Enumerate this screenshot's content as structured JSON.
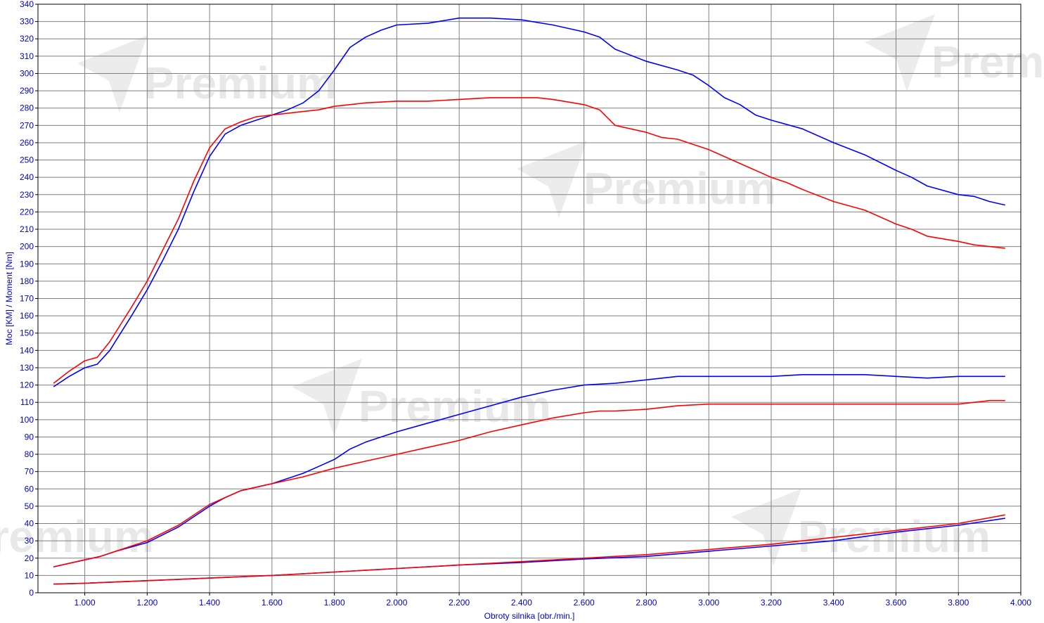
{
  "watermark": {
    "text": "Premium",
    "icon": "triangle-logo-icon"
  },
  "chart_data": {
    "type": "line",
    "xlabel": "Obroty silnika [obr./min.]",
    "ylabel": "Moc [KM] / Moment [Nm]",
    "xlim": [
      850,
      4000
    ],
    "ylim": [
      0,
      340
    ],
    "xticks": [
      1000,
      1200,
      1400,
      1600,
      1800,
      2000,
      2200,
      2400,
      2600,
      2800,
      3000,
      3200,
      3400,
      3600,
      3800,
      4000
    ],
    "xtick_labels": [
      "1.000",
      "1.200",
      "1.400",
      "1.600",
      "1.800",
      "2.000",
      "2.200",
      "2.400",
      "2.600",
      "2.800",
      "3.000",
      "3.200",
      "3.400",
      "3.600",
      "3.800",
      "4.000"
    ],
    "yticks": [
      0,
      10,
      20,
      30,
      40,
      50,
      60,
      70,
      80,
      90,
      100,
      110,
      120,
      130,
      140,
      150,
      160,
      170,
      180,
      190,
      200,
      210,
      220,
      230,
      240,
      250,
      260,
      270,
      280,
      290,
      300,
      310,
      320,
      330,
      340
    ],
    "ytick_labels": [
      "0",
      "10",
      "20",
      "30",
      "40",
      "50",
      "60",
      "70",
      "80",
      "90",
      "100",
      "110",
      "120",
      "130",
      "140",
      "150",
      "160",
      "170",
      "180",
      "190",
      "200",
      "210",
      "220",
      "230",
      "240",
      "250",
      "260",
      "270",
      "280",
      "290",
      "300",
      "310",
      "320",
      "330",
      "340"
    ],
    "grid": true,
    "legend": "none",
    "series": [
      {
        "color": "#0000ff",
        "points": [
          [
            900,
            119
          ],
          [
            950,
            125
          ],
          [
            1000,
            130
          ],
          [
            1040,
            132
          ],
          [
            1080,
            140
          ],
          [
            1150,
            160
          ],
          [
            1200,
            175
          ],
          [
            1250,
            192
          ],
          [
            1300,
            210
          ],
          [
            1350,
            232
          ],
          [
            1400,
            252
          ],
          [
            1450,
            265
          ],
          [
            1500,
            270
          ],
          [
            1550,
            273
          ],
          [
            1600,
            276
          ],
          [
            1650,
            279
          ],
          [
            1700,
            283
          ],
          [
            1750,
            290
          ],
          [
            1800,
            302
          ],
          [
            1850,
            315
          ],
          [
            1900,
            321
          ],
          [
            1950,
            325
          ],
          [
            2000,
            328
          ],
          [
            2100,
            329
          ],
          [
            2200,
            332
          ],
          [
            2300,
            332
          ],
          [
            2400,
            331
          ],
          [
            2500,
            328
          ],
          [
            2600,
            324
          ],
          [
            2650,
            321
          ],
          [
            2700,
            314
          ],
          [
            2800,
            307
          ],
          [
            2900,
            302
          ],
          [
            2950,
            299
          ],
          [
            3000,
            293
          ],
          [
            3050,
            286
          ],
          [
            3100,
            282
          ],
          [
            3150,
            276
          ],
          [
            3200,
            273
          ],
          [
            3300,
            268
          ],
          [
            3400,
            260
          ],
          [
            3500,
            253
          ],
          [
            3600,
            244
          ],
          [
            3650,
            240
          ],
          [
            3700,
            235
          ],
          [
            3800,
            230
          ],
          [
            3850,
            229
          ],
          [
            3900,
            226
          ],
          [
            3950,
            224
          ]
        ]
      },
      {
        "color": "#ff0000",
        "points": [
          [
            900,
            121
          ],
          [
            950,
            128
          ],
          [
            1000,
            134
          ],
          [
            1040,
            136
          ],
          [
            1080,
            145
          ],
          [
            1150,
            165
          ],
          [
            1200,
            180
          ],
          [
            1250,
            198
          ],
          [
            1300,
            216
          ],
          [
            1350,
            238
          ],
          [
            1400,
            257
          ],
          [
            1450,
            268
          ],
          [
            1500,
            272
          ],
          [
            1550,
            275
          ],
          [
            1600,
            276
          ],
          [
            1650,
            277
          ],
          [
            1700,
            278
          ],
          [
            1750,
            279
          ],
          [
            1800,
            281
          ],
          [
            1900,
            283
          ],
          [
            2000,
            284
          ],
          [
            2100,
            284
          ],
          [
            2200,
            285
          ],
          [
            2300,
            286
          ],
          [
            2400,
            286
          ],
          [
            2450,
            286
          ],
          [
            2500,
            285
          ],
          [
            2600,
            282
          ],
          [
            2650,
            279
          ],
          [
            2700,
            270
          ],
          [
            2800,
            266
          ],
          [
            2850,
            263
          ],
          [
            2900,
            262
          ],
          [
            3000,
            256
          ],
          [
            3100,
            248
          ],
          [
            3200,
            240
          ],
          [
            3250,
            237
          ],
          [
            3300,
            233
          ],
          [
            3400,
            226
          ],
          [
            3500,
            221
          ],
          [
            3600,
            213
          ],
          [
            3650,
            210
          ],
          [
            3700,
            206
          ],
          [
            3800,
            203
          ],
          [
            3850,
            201
          ],
          [
            3900,
            200
          ],
          [
            3950,
            199
          ]
        ]
      },
      {
        "color": "#0000ff",
        "points": [
          [
            900,
            15
          ],
          [
            1000,
            19
          ],
          [
            1050,
            21
          ],
          [
            1100,
            24
          ],
          [
            1200,
            29
          ],
          [
            1300,
            38
          ],
          [
            1400,
            50
          ],
          [
            1450,
            55
          ],
          [
            1500,
            59
          ],
          [
            1600,
            63
          ],
          [
            1700,
            69
          ],
          [
            1750,
            73
          ],
          [
            1800,
            77
          ],
          [
            1850,
            83
          ],
          [
            1900,
            87
          ],
          [
            2000,
            93
          ],
          [
            2100,
            98
          ],
          [
            2200,
            103
          ],
          [
            2300,
            108
          ],
          [
            2400,
            113
          ],
          [
            2500,
            117
          ],
          [
            2600,
            120
          ],
          [
            2700,
            121
          ],
          [
            2800,
            123
          ],
          [
            2900,
            125
          ],
          [
            3000,
            125
          ],
          [
            3100,
            125
          ],
          [
            3200,
            125
          ],
          [
            3300,
            126
          ],
          [
            3400,
            126
          ],
          [
            3500,
            126
          ],
          [
            3600,
            125
          ],
          [
            3700,
            124
          ],
          [
            3800,
            125
          ],
          [
            3900,
            125
          ],
          [
            3950,
            125
          ]
        ]
      },
      {
        "color": "#ff0000",
        "points": [
          [
            900,
            15
          ],
          [
            1000,
            19
          ],
          [
            1050,
            21
          ],
          [
            1100,
            24
          ],
          [
            1200,
            30
          ],
          [
            1300,
            39
          ],
          [
            1400,
            51
          ],
          [
            1450,
            55
          ],
          [
            1500,
            59
          ],
          [
            1600,
            63
          ],
          [
            1700,
            67
          ],
          [
            1800,
            72
          ],
          [
            1900,
            76
          ],
          [
            2000,
            80
          ],
          [
            2100,
            84
          ],
          [
            2200,
            88
          ],
          [
            2300,
            93
          ],
          [
            2400,
            97
          ],
          [
            2500,
            101
          ],
          [
            2600,
            104
          ],
          [
            2650,
            105
          ],
          [
            2700,
            105
          ],
          [
            2800,
            106
          ],
          [
            2900,
            108
          ],
          [
            3000,
            109
          ],
          [
            3100,
            109
          ],
          [
            3200,
            109
          ],
          [
            3300,
            109
          ],
          [
            3400,
            109
          ],
          [
            3500,
            109
          ],
          [
            3600,
            109
          ],
          [
            3700,
            109
          ],
          [
            3800,
            109
          ],
          [
            3900,
            111
          ],
          [
            3950,
            111
          ]
        ]
      },
      {
        "color": "#0000ff",
        "points": [
          [
            900,
            5
          ],
          [
            1000,
            5.5
          ],
          [
            1200,
            7
          ],
          [
            1400,
            8.5
          ],
          [
            1600,
            10
          ],
          [
            1800,
            12
          ],
          [
            2000,
            14
          ],
          [
            2200,
            16
          ],
          [
            2400,
            17.5
          ],
          [
            2600,
            19.5
          ],
          [
            2800,
            21
          ],
          [
            3000,
            24
          ],
          [
            3200,
            27
          ],
          [
            3400,
            30
          ],
          [
            3600,
            35
          ],
          [
            3800,
            39
          ],
          [
            3950,
            43
          ]
        ]
      },
      {
        "color": "#ff0000",
        "points": [
          [
            900,
            5
          ],
          [
            1000,
            5.5
          ],
          [
            1200,
            7
          ],
          [
            1400,
            8.5
          ],
          [
            1600,
            10
          ],
          [
            1800,
            12
          ],
          [
            2000,
            14
          ],
          [
            2200,
            16
          ],
          [
            2400,
            18
          ],
          [
            2600,
            20
          ],
          [
            2800,
            22
          ],
          [
            3000,
            25
          ],
          [
            3200,
            28
          ],
          [
            3400,
            32
          ],
          [
            3600,
            36
          ],
          [
            3800,
            40
          ],
          [
            3950,
            45
          ]
        ]
      }
    ]
  }
}
